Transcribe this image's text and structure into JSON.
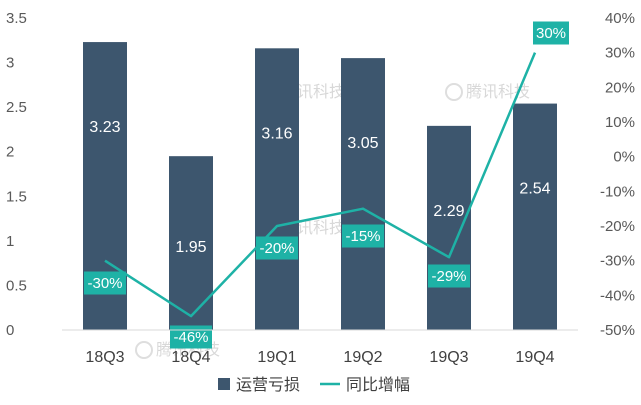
{
  "chart_data": {
    "type": "bar",
    "categories": [
      "18Q3",
      "18Q4",
      "19Q1",
      "19Q2",
      "19Q3",
      "19Q4"
    ],
    "series": [
      {
        "name": "运营亏损",
        "kind": "bar",
        "axis": "left",
        "values": [
          3.23,
          1.95,
          3.16,
          3.05,
          2.29,
          2.54
        ],
        "labels": [
          "3.23",
          "1.95",
          "3.16",
          "3.05",
          "2.29",
          "2.54"
        ],
        "color": "#3d566e"
      },
      {
        "name": "同比增幅",
        "kind": "line",
        "axis": "right",
        "values": [
          -30,
          -46,
          -20,
          -15,
          -29,
          30
        ],
        "labels": [
          "-30%",
          "-46%",
          "-20%",
          "-15%",
          "-29%",
          "30%"
        ],
        "color": "#1eb2a6"
      }
    ],
    "y_left": {
      "lim": [
        0,
        3.5
      ],
      "ticks": [
        0,
        0.5,
        1,
        1.5,
        2,
        2.5,
        3,
        3.5
      ],
      "tick_labels": [
        "0",
        "0.5",
        "1",
        "1.5",
        "2",
        "2.5",
        "3",
        "3.5"
      ]
    },
    "y_right": {
      "lim": [
        -50,
        40
      ],
      "ticks": [
        -50,
        -40,
        -30,
        -20,
        -10,
        0,
        10,
        20,
        30,
        40
      ],
      "tick_labels": [
        "-50%",
        "-40%",
        "-30%",
        "-20%",
        "-10%",
        "0%",
        "10%",
        "20%",
        "30%",
        "40%"
      ]
    },
    "legend": {
      "placement": "bottom",
      "entries": [
        "运营亏损",
        "同比增幅"
      ]
    },
    "watermark": "腾讯科技",
    "grid": false,
    "title": "",
    "xlabel": "",
    "ylabel": ""
  }
}
